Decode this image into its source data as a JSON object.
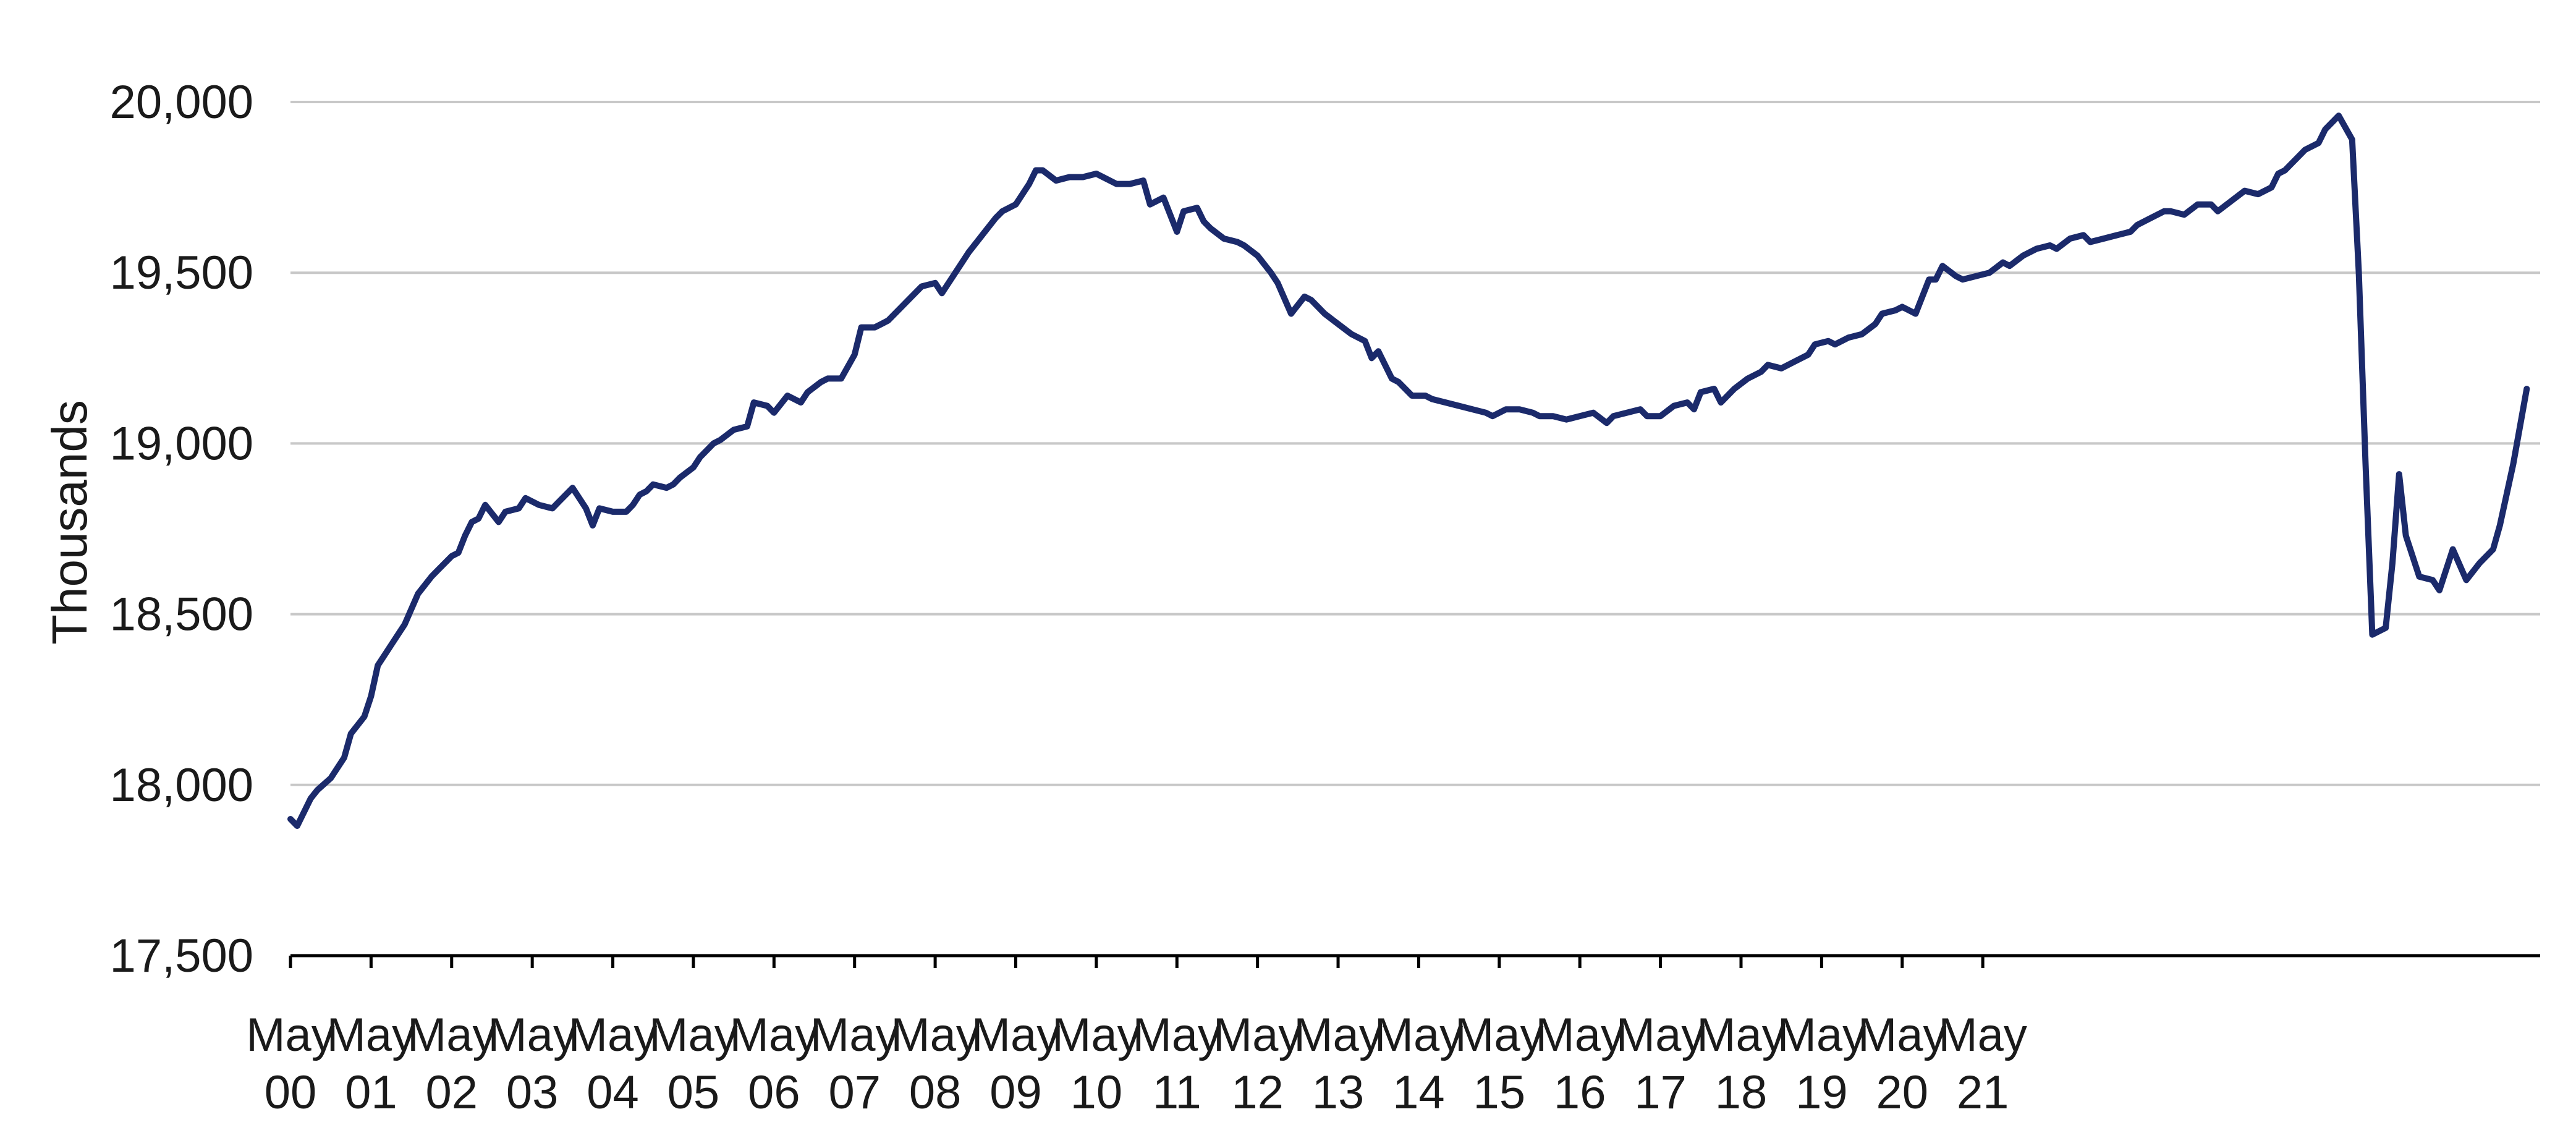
{
  "chart_data": {
    "type": "line",
    "title": "",
    "xlabel": "",
    "ylabel": "Thousands",
    "ylim": [
      17500,
      20000
    ],
    "yticks": [
      "20,000",
      "19,500",
      "19,000",
      "18,500",
      "18,000",
      "17,500"
    ],
    "ytick_values": [
      20000,
      19500,
      19000,
      18500,
      18000,
      17500
    ],
    "xticks": [
      {
        "top": "May",
        "bottom": "00"
      },
      {
        "top": "May",
        "bottom": "01"
      },
      {
        "top": "May",
        "bottom": "02"
      },
      {
        "top": "May",
        "bottom": "03"
      },
      {
        "top": "May",
        "bottom": "04"
      },
      {
        "top": "May",
        "bottom": "05"
      },
      {
        "top": "May",
        "bottom": "06"
      },
      {
        "top": "May",
        "bottom": "07"
      },
      {
        "top": "May",
        "bottom": "08"
      },
      {
        "top": "May",
        "bottom": "09"
      },
      {
        "top": "May",
        "bottom": "10"
      },
      {
        "top": "May",
        "bottom": "11"
      },
      {
        "top": "May",
        "bottom": "12"
      },
      {
        "top": "May",
        "bottom": "13"
      },
      {
        "top": "May",
        "bottom": "14"
      },
      {
        "top": "May",
        "bottom": "15"
      },
      {
        "top": "May",
        "bottom": "16"
      },
      {
        "top": "May",
        "bottom": "17"
      },
      {
        "top": "May",
        "bottom": "18"
      },
      {
        "top": "May",
        "bottom": "19"
      },
      {
        "top": "May",
        "bottom": "20"
      },
      {
        "top": "May",
        "bottom": "21"
      }
    ],
    "xtick_dates": [
      "2000-05",
      "2001-05",
      "2002-05",
      "2003-05",
      "2004-05",
      "2005-05",
      "2006-05",
      "2007-05",
      "2008-05",
      "2009-05",
      "2010-05",
      "2011-05",
      "2012-05",
      "2013-05",
      "2014-05",
      "2015-05",
      "2016-05",
      "2017-05",
      "2018-05",
      "2019-05",
      "2020-05",
      "2021-05"
    ],
    "grid": true,
    "line_color": "#1b2a6b",
    "grid_color": "#c8c8c8",
    "axis_color": "#000000",
    "series": [
      {
        "name": "",
        "points": [
          [
            "2000-05",
            17900
          ],
          [
            "2000-06",
            17880
          ],
          [
            "2000-08",
            17960
          ],
          [
            "2000-09",
            17985
          ],
          [
            "2000-11",
            18020
          ],
          [
            "2001-01",
            18080
          ],
          [
            "2001-02",
            18150
          ],
          [
            "2001-04",
            18200
          ],
          [
            "2001-05",
            18260
          ],
          [
            "2001-06",
            18350
          ],
          [
            "2001-08",
            18410
          ],
          [
            "2001-10",
            18470
          ],
          [
            "2001-12",
            18560
          ],
          [
            "2002-02",
            18610
          ],
          [
            "2002-03",
            18630
          ],
          [
            "2002-05",
            18670
          ],
          [
            "2002-06",
            18680
          ],
          [
            "2002-07",
            18730
          ],
          [
            "2002-08",
            18770
          ],
          [
            "2002-09",
            18780
          ],
          [
            "2002-10",
            18820
          ],
          [
            "2002-12",
            18770
          ],
          [
            "2003-01",
            18800
          ],
          [
            "2003-03",
            18810
          ],
          [
            "2003-04",
            18840
          ],
          [
            "2003-06",
            18820
          ],
          [
            "2003-08",
            18810
          ],
          [
            "2003-09",
            18830
          ],
          [
            "2003-11",
            18870
          ],
          [
            "2004-01",
            18810
          ],
          [
            "2004-02",
            18760
          ],
          [
            "2004-03",
            18810
          ],
          [
            "2004-05",
            18800
          ],
          [
            "2004-07",
            18800
          ],
          [
            "2004-08",
            18820
          ],
          [
            "2004-09",
            18850
          ],
          [
            "2004-10",
            18860
          ],
          [
            "2004-11",
            18880
          ],
          [
            "2005-01",
            18870
          ],
          [
            "2005-02",
            18880
          ],
          [
            "2005-03",
            18900
          ],
          [
            "2005-05",
            18930
          ],
          [
            "2005-06",
            18960
          ],
          [
            "2005-08",
            19000
          ],
          [
            "2005-09",
            19010
          ],
          [
            "2005-11",
            19040
          ],
          [
            "2006-01",
            19050
          ],
          [
            "2006-02",
            19120
          ],
          [
            "2006-04",
            19110
          ],
          [
            "2006-05",
            19090
          ],
          [
            "2006-07",
            19140
          ],
          [
            "2006-09",
            19120
          ],
          [
            "2006-10",
            19150
          ],
          [
            "2006-12",
            19180
          ],
          [
            "2007-01",
            19190
          ],
          [
            "2007-03",
            19190
          ],
          [
            "2007-05",
            19260
          ],
          [
            "2007-06",
            19340
          ],
          [
            "2007-08",
            19340
          ],
          [
            "2007-09",
            19350
          ],
          [
            "2007-10",
            19360
          ],
          [
            "2007-12",
            19400
          ],
          [
            "2008-01",
            19420
          ],
          [
            "2008-03",
            19460
          ],
          [
            "2008-05",
            19470
          ],
          [
            "2008-06",
            19440
          ],
          [
            "2008-08",
            19500
          ],
          [
            "2008-10",
            19560
          ],
          [
            "2008-12",
            19610
          ],
          [
            "2009-02",
            19660
          ],
          [
            "2009-03",
            19680
          ],
          [
            "2009-05",
            19700
          ],
          [
            "2009-07",
            19760
          ],
          [
            "2009-08",
            19800
          ],
          [
            "2009-09",
            19800
          ],
          [
            "2009-11",
            19770
          ],
          [
            "2010-01",
            19780
          ],
          [
            "2010-03",
            19780
          ],
          [
            "2010-05",
            19790
          ],
          [
            "2010-06",
            19780
          ],
          [
            "2010-08",
            19760
          ],
          [
            "2010-10",
            19760
          ],
          [
            "2010-12",
            19770
          ],
          [
            "2011-01",
            19700
          ],
          [
            "2011-03",
            19720
          ],
          [
            "2011-05",
            19620
          ],
          [
            "2011-06",
            19680
          ],
          [
            "2011-08",
            19690
          ],
          [
            "2011-09",
            19650
          ],
          [
            "2011-10",
            19630
          ],
          [
            "2011-12",
            19600
          ],
          [
            "2012-02",
            19590
          ],
          [
            "2012-03",
            19580
          ],
          [
            "2012-05",
            19550
          ],
          [
            "2012-07",
            19500
          ],
          [
            "2012-08",
            19470
          ],
          [
            "2012-10",
            19380
          ],
          [
            "2012-12",
            19430
          ],
          [
            "2013-01",
            19420
          ],
          [
            "2013-03",
            19380
          ],
          [
            "2013-05",
            19350
          ],
          [
            "2013-07",
            19320
          ],
          [
            "2013-09",
            19300
          ],
          [
            "2013-10",
            19250
          ],
          [
            "2013-11",
            19270
          ],
          [
            "2014-01",
            19190
          ],
          [
            "2014-02",
            19180
          ],
          [
            "2014-04",
            19140
          ],
          [
            "2014-06",
            19140
          ],
          [
            "2014-07",
            19130
          ],
          [
            "2014-09",
            19120
          ],
          [
            "2014-11",
            19110
          ],
          [
            "2015-01",
            19100
          ],
          [
            "2015-03",
            19090
          ],
          [
            "2015-04",
            19080
          ],
          [
            "2015-06",
            19100
          ],
          [
            "2015-08",
            19100
          ],
          [
            "2015-10",
            19090
          ],
          [
            "2015-11",
            19080
          ],
          [
            "2016-01",
            19080
          ],
          [
            "2016-03",
            19070
          ],
          [
            "2016-05",
            19080
          ],
          [
            "2016-07",
            19090
          ],
          [
            "2016-09",
            19060
          ],
          [
            "2016-10",
            19080
          ],
          [
            "2016-12",
            19090
          ],
          [
            "2017-02",
            19100
          ],
          [
            "2017-03",
            19080
          ],
          [
            "2017-05",
            19080
          ],
          [
            "2017-07",
            19110
          ],
          [
            "2017-09",
            19120
          ],
          [
            "2017-10",
            19100
          ],
          [
            "2017-11",
            19150
          ],
          [
            "2018-01",
            19160
          ],
          [
            "2018-02",
            19120
          ],
          [
            "2018-04",
            19160
          ],
          [
            "2018-06",
            19190
          ],
          [
            "2018-08",
            19210
          ],
          [
            "2018-09",
            19230
          ],
          [
            "2018-11",
            19220
          ],
          [
            "2019-01",
            19240
          ],
          [
            "2019-03",
            19260
          ],
          [
            "2019-04",
            19290
          ],
          [
            "2019-06",
            19300
          ],
          [
            "2019-07",
            19290
          ],
          [
            "2019-09",
            19310
          ],
          [
            "2019-11",
            19320
          ],
          [
            "2020-01",
            19350
          ],
          [
            "2020-02",
            19380
          ],
          [
            "2020-04",
            19390
          ],
          [
            "2020-05",
            19400
          ],
          [
            "2020-07",
            19380
          ],
          [
            "2020-09",
            19480
          ],
          [
            "2020-10",
            19480
          ],
          [
            "2020-11",
            19520
          ],
          [
            "2021-01",
            19490
          ],
          [
            "2021-02",
            19480
          ],
          [
            "2021-04",
            19490
          ],
          [
            "2021-06",
            19500
          ],
          [
            "2021-08",
            19530
          ],
          [
            "2021-09",
            19520
          ],
          [
            "2021-11",
            19550
          ],
          [
            "2022-01",
            19570
          ],
          [
            "2022-03",
            19580
          ],
          [
            "2022-04",
            19570
          ],
          [
            "2022-06",
            19600
          ],
          [
            "2022-08",
            19610
          ],
          [
            "2022-09",
            19590
          ],
          [
            "2022-11",
            19600
          ],
          [
            "2023-01",
            19610
          ],
          [
            "2023-03",
            19620
          ],
          [
            "2023-04",
            19640
          ],
          [
            "2023-06",
            19660
          ],
          [
            "2023-08",
            19680
          ],
          [
            "2023-09",
            19680
          ],
          [
            "2023-11",
            19670
          ],
          [
            "2024-01",
            19700
          ],
          [
            "2024-03",
            19700
          ],
          [
            "2024-04",
            19680
          ],
          [
            "2024-06",
            19710
          ],
          [
            "2024-08",
            19740
          ],
          [
            "2024-10",
            19730
          ],
          [
            "2024-12",
            19750
          ],
          [
            "2025-01",
            19790
          ],
          [
            "2025-02",
            19800
          ],
          [
            "2025-03",
            19820
          ],
          [
            "2025-05",
            19860
          ],
          [
            "2025-07",
            19880
          ],
          [
            "2025-08",
            19920
          ],
          [
            "2025-10",
            19960
          ],
          [
            "2025-12",
            19890
          ],
          [
            "2026-01",
            19500
          ],
          [
            "2026-02",
            18940
          ],
          [
            "2026-03",
            18440
          ],
          [
            "2026-05",
            18460
          ],
          [
            "2026-06",
            18650
          ],
          [
            "2026-07",
            18910
          ],
          [
            "2026-08",
            18730
          ],
          [
            "2026-10",
            18610
          ],
          [
            "2026-12",
            18600
          ],
          [
            "2027-01",
            18570
          ],
          [
            "2027-03",
            18690
          ],
          [
            "2027-05",
            18600
          ],
          [
            "2027-07",
            18650
          ],
          [
            "2027-09",
            18690
          ],
          [
            "2027-10",
            18760
          ],
          [
            "2027-12",
            18940
          ],
          [
            "2028-02",
            19160
          ]
        ]
      }
    ]
  }
}
